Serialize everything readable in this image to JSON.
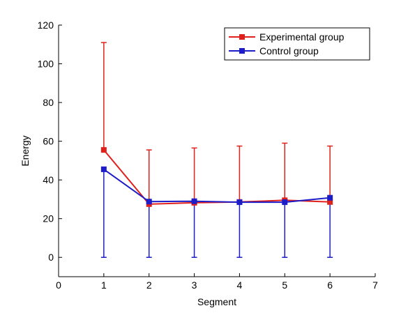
{
  "chart_data": {
    "type": "line",
    "xlabel": "Segment",
    "ylabel": "Energy",
    "xlim": [
      0,
      7
    ],
    "ylim": [
      -10,
      120
    ],
    "xticks": [
      "0",
      "1",
      "2",
      "3",
      "4",
      "5",
      "6",
      "7"
    ],
    "yticks": [
      "0",
      "20",
      "40",
      "60",
      "80",
      "100",
      "120"
    ],
    "grid": false,
    "legend_position": "top-right",
    "x": [
      1,
      2,
      3,
      4,
      5,
      6
    ],
    "series": [
      {
        "name": "Experimental group",
        "color": "#e0201b",
        "values": [
          55.5,
          27.5,
          28.2,
          28.6,
          29.5,
          28.6
        ],
        "error_upper": [
          111,
          55.5,
          56.5,
          57.5,
          59,
          57.5
        ],
        "error_lower": [
          55.5,
          27.5,
          28.2,
          28.6,
          29.5,
          28.6
        ]
      },
      {
        "name": "Control group",
        "color": "#1c1cc8",
        "values": [
          45.5,
          28.8,
          29.0,
          28.5,
          28.5,
          30.8
        ],
        "error_upper": [
          45.5,
          28.8,
          29.0,
          28.5,
          28.5,
          30.8
        ],
        "error_lower": [
          0,
          0,
          0,
          0,
          0,
          0
        ]
      }
    ]
  }
}
